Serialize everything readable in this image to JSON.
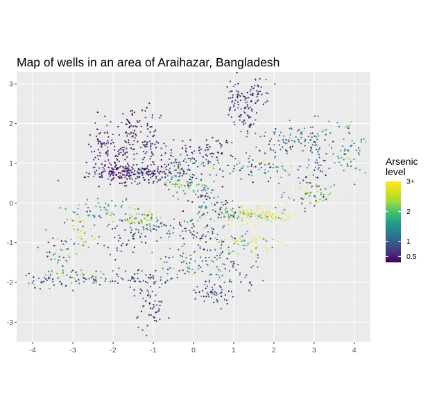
{
  "chart_data": {
    "type": "scatter",
    "title": "Map of wells in an area of Araihazar, Bangladesh",
    "xlabel": "",
    "ylabel": "",
    "xlim": [
      -4.4,
      4.4
    ],
    "ylim": [
      -3.5,
      3.3
    ],
    "x_ticks": [
      -4,
      -3,
      -2,
      -1,
      0,
      1,
      2,
      3,
      4
    ],
    "y_ticks": [
      -3,
      -2,
      -1,
      0,
      1,
      2,
      3
    ],
    "x_tick_labels": [
      "-4",
      "-3",
      "-2",
      "-1",
      "0",
      "1",
      "2",
      "3",
      "4"
    ],
    "y_tick_labels": [
      "-3",
      "-2",
      "-1",
      "0",
      "1",
      "2",
      "3"
    ],
    "grid": true,
    "legend": {
      "title": "Arsenic level",
      "placement": "right",
      "colormap": "viridis",
      "range": [
        0.3,
        3
      ],
      "breaks": [
        0.5,
        1,
        2,
        3
      ],
      "break_labels": [
        "0.5",
        "1",
        "2",
        "3+"
      ]
    },
    "clusters": [
      {
        "x": -1.5,
        "y": 0.75,
        "sx": 0.55,
        "sy": 0.12,
        "n": 200,
        "level": 0.5,
        "spread": 0.3
      },
      {
        "x": -2.3,
        "y": 1.5,
        "sx": 0.15,
        "sy": 0.35,
        "n": 60,
        "level": 0.5,
        "spread": 0.2
      },
      {
        "x": -1.9,
        "y": 1.05,
        "sx": 0.2,
        "sy": 0.25,
        "n": 60,
        "level": 0.5,
        "spread": 0.2
      },
      {
        "x": -1.6,
        "y": 1.9,
        "sx": 0.12,
        "sy": 0.3,
        "n": 50,
        "level": 0.4,
        "spread": 0.15
      },
      {
        "x": -1.1,
        "y": 1.55,
        "sx": 0.18,
        "sy": 0.45,
        "n": 70,
        "level": 0.5,
        "spread": 0.2
      },
      {
        "x": -0.4,
        "y": 1.0,
        "sx": 0.35,
        "sy": 0.25,
        "n": 80,
        "level": 0.8,
        "spread": 0.6
      },
      {
        "x": 0.4,
        "y": 1.3,
        "sx": 0.3,
        "sy": 0.2,
        "n": 60,
        "level": 0.5,
        "spread": 0.3
      },
      {
        "x": 1.0,
        "y": 2.6,
        "sx": 0.1,
        "sy": 0.3,
        "n": 40,
        "level": 0.6,
        "spread": 0.3
      },
      {
        "x": 1.5,
        "y": 2.7,
        "sx": 0.2,
        "sy": 0.25,
        "n": 60,
        "level": 0.6,
        "spread": 0.4
      },
      {
        "x": 1.35,
        "y": 2.1,
        "sx": 0.12,
        "sy": 0.25,
        "n": 30,
        "level": 0.7,
        "spread": 0.3
      },
      {
        "x": 1.6,
        "y": 0.85,
        "sx": 0.5,
        "sy": 0.15,
        "n": 70,
        "level": 1.6,
        "spread": 0.9
      },
      {
        "x": 2.1,
        "y": 1.5,
        "sx": 0.3,
        "sy": 0.25,
        "n": 40,
        "level": 0.8,
        "spread": 0.4
      },
      {
        "x": 2.8,
        "y": 1.6,
        "sx": 0.35,
        "sy": 0.2,
        "n": 50,
        "level": 1.2,
        "spread": 0.6
      },
      {
        "x": 3.1,
        "y": 1.0,
        "sx": 0.2,
        "sy": 0.4,
        "n": 60,
        "level": 1.0,
        "spread": 0.5
      },
      {
        "x": 3.9,
        "y": 1.4,
        "sx": 0.2,
        "sy": 0.35,
        "n": 50,
        "level": 1.5,
        "spread": 0.6
      },
      {
        "x": 2.9,
        "y": 0.15,
        "sx": 0.3,
        "sy": 0.15,
        "n": 60,
        "level": 1.6,
        "spread": 0.9
      },
      {
        "x": 1.6,
        "y": -0.3,
        "sx": 0.45,
        "sy": 0.1,
        "n": 100,
        "level": 2.6,
        "spread": 0.6
      },
      {
        "x": 0.8,
        "y": -0.2,
        "sx": 0.25,
        "sy": 0.15,
        "n": 40,
        "level": 1.5,
        "spread": 0.8
      },
      {
        "x": 0.3,
        "y": 0.1,
        "sx": 0.2,
        "sy": 0.35,
        "n": 50,
        "level": 1.2,
        "spread": 0.8
      },
      {
        "x": -0.2,
        "y": 0.5,
        "sx": 0.3,
        "sy": 0.15,
        "n": 60,
        "level": 1.8,
        "spread": 0.8
      },
      {
        "x": -1.3,
        "y": -0.4,
        "sx": 0.3,
        "sy": 0.1,
        "n": 60,
        "level": 2.2,
        "spread": 0.8
      },
      {
        "x": -2.2,
        "y": -0.2,
        "sx": 0.4,
        "sy": 0.15,
        "n": 50,
        "level": 1.6,
        "spread": 0.8
      },
      {
        "x": -2.8,
        "y": -0.7,
        "sx": 0.25,
        "sy": 0.2,
        "n": 40,
        "level": 2.0,
        "spread": 0.9
      },
      {
        "x": -0.8,
        "y": -0.7,
        "sx": 0.45,
        "sy": 0.15,
        "n": 50,
        "level": 0.8,
        "spread": 0.5
      },
      {
        "x": -1.7,
        "y": -1.0,
        "sx": 0.3,
        "sy": 0.2,
        "n": 30,
        "level": 0.7,
        "spread": 0.4
      },
      {
        "x": -3.4,
        "y": -1.2,
        "sx": 0.25,
        "sy": 0.3,
        "n": 40,
        "level": 1.2,
        "spread": 0.7
      },
      {
        "x": -3.6,
        "y": -2.0,
        "sx": 0.25,
        "sy": 0.12,
        "n": 30,
        "level": 1.0,
        "spread": 0.6
      },
      {
        "x": -2.9,
        "y": -1.85,
        "sx": 0.4,
        "sy": 0.08,
        "n": 40,
        "level": 1.8,
        "spread": 0.8
      },
      {
        "x": -2.0,
        "y": -1.9,
        "sx": 0.35,
        "sy": 0.1,
        "n": 30,
        "level": 1.0,
        "spread": 0.6
      },
      {
        "x": -1.2,
        "y": -1.9,
        "sx": 0.3,
        "sy": 0.15,
        "n": 40,
        "level": 0.8,
        "spread": 0.4
      },
      {
        "x": -1.1,
        "y": -2.6,
        "sx": 0.2,
        "sy": 0.25,
        "n": 50,
        "level": 0.6,
        "spread": 0.4
      },
      {
        "x": -0.2,
        "y": -1.5,
        "sx": 0.35,
        "sy": 0.2,
        "n": 50,
        "level": 1.2,
        "spread": 0.7
      },
      {
        "x": 0.6,
        "y": -1.3,
        "sx": 0.25,
        "sy": 0.5,
        "n": 70,
        "level": 1.0,
        "spread": 0.6
      },
      {
        "x": 0.5,
        "y": -2.3,
        "sx": 0.3,
        "sy": 0.12,
        "n": 40,
        "level": 0.7,
        "spread": 0.4
      },
      {
        "x": 1.4,
        "y": -1.05,
        "sx": 0.35,
        "sy": 0.15,
        "n": 50,
        "level": 2.3,
        "spread": 0.8
      },
      {
        "x": 1.2,
        "y": -1.7,
        "sx": 0.3,
        "sy": 0.2,
        "n": 30,
        "level": 1.0,
        "spread": 0.6
      },
      {
        "x": 0.1,
        "y": -0.8,
        "sx": 0.25,
        "sy": 0.3,
        "n": 30,
        "level": 1.0,
        "spread": 0.6
      }
    ]
  }
}
